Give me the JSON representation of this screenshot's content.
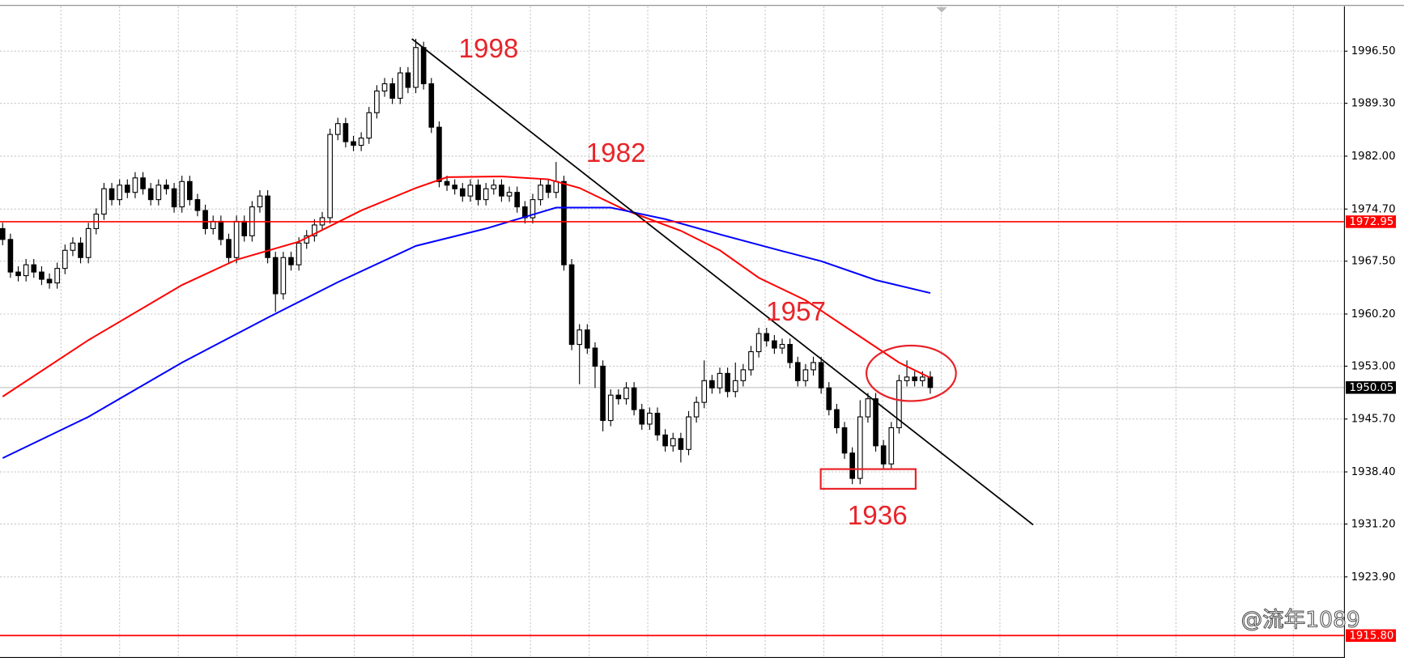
{
  "chart_data": {
    "type": "candlestick",
    "xlim": [
      -0.34,
      172.07
    ],
    "ylim": [
      1912.7,
      2002.7
    ],
    "yticks": [
      {
        "value": 1996.5,
        "label": "1996.50"
      },
      {
        "value": 1989.3,
        "label": "1989.30"
      },
      {
        "value": 1982,
        "label": "1982.00"
      },
      {
        "value": 1974.7,
        "label": "1974.70"
      },
      {
        "value": 1967.5,
        "label": "1967.50"
      },
      {
        "value": 1960.2,
        "label": "1960.20"
      },
      {
        "value": 1953,
        "label": "1953.00"
      },
      {
        "value": 1945.7,
        "label": "1945.70"
      },
      {
        "value": 1938.4,
        "label": "1938.40"
      },
      {
        "value": 1931.2,
        "label": "1931.20"
      },
      {
        "value": 1923.9,
        "label": "1923.90"
      }
    ],
    "grid": true,
    "open": [
      1972,
      1970.5,
      1966,
      1965.5,
      1967,
      1966,
      1965,
      1964.5,
      1966.5,
      1969,
      1970,
      1968,
      1972,
      1974,
      1977.5,
      1976,
      1978,
      1977,
      1979,
      1977.5,
      1976,
      1978,
      1977.5,
      1975,
      1978.5,
      1976,
      1974.5,
      1972,
      1973,
      1970.5,
      1968,
      1973,
      1971,
      1975,
      1976.5,
      1968,
      1963,
      1968,
      1967,
      1970,
      1971,
      1972.5,
      1973.5,
      1985,
      1986.5,
      1984,
      1983.5,
      1984.5,
      1988,
      1991,
      1992,
      1990,
      1993.5,
      1991.5,
      1997,
      1992,
      1986,
      1978.5,
      1978,
      1977.5,
      1976.5,
      1978,
      1976,
      1977.5,
      1978,
      1976.5,
      1977,
      1975,
      1973.5,
      1976,
      1978,
      1977,
      1978.5,
      1967,
      1956,
      1958,
      1955.5,
      1953,
      1945.5,
      1949,
      1948.5,
      1950,
      1947,
      1945,
      1946.5,
      1943.5,
      1942,
      1943,
      1941.5,
      1946,
      1948,
      1951,
      1950,
      1952,
      1949.5,
      1951,
      1952.5,
      1955,
      1957.5,
      1956.5,
      1955.5,
      1956,
      1953.5,
      1951,
      1952.5,
      1953.5,
      1950,
      1947,
      1944.5,
      1941,
      1937.5,
      1946,
      1948.5,
      1942,
      1939.5,
      1944.5,
      1951,
      1951.5,
      1951,
      1951.5
    ],
    "high": [
      1972.8,
      1971.3,
      1966.8,
      1967.8,
      1967.8,
      1966.8,
      1965.8,
      1967.3,
      1969.8,
      1970.8,
      1970.8,
      1972.8,
      1974.8,
      1978.3,
      1978.3,
      1978.8,
      1978.8,
      1979.8,
      1979.8,
      1978.3,
      1978.8,
      1978.8,
      1978.3,
      1979.3,
      1979.3,
      1976.8,
      1975.3,
      1973.8,
      1973.8,
      1971.3,
      1973.8,
      1973.8,
      1975.8,
      1977.3,
      1977.3,
      1968.8,
      1968.8,
      1968.8,
      1970.8,
      1971.8,
      1973.3,
      1974.3,
      1985.8,
      1987.3,
      1987.3,
      1984.8,
      1985.3,
      1988.8,
      1991.8,
      1992.8,
      1992.8,
      1994.3,
      1994.3,
      1998.2,
      1997.8,
      1992.8,
      1986.8,
      1979.3,
      1978.8,
      1978.3,
      1978.8,
      1978.8,
      1978.3,
      1978.8,
      1978.8,
      1977.8,
      1977.8,
      1975.8,
      1976.8,
      1978.8,
      1978.8,
      1981.2,
      1979.3,
      1967.8,
      1958.8,
      1958.8,
      1956.3,
      1953.8,
      1949.8,
      1949.8,
      1950.8,
      1950.8,
      1947.8,
      1947.3,
      1947.3,
      1944.3,
      1943.8,
      1943.8,
      1946.8,
      1948.8,
      1953.8,
      1951.8,
      1952.8,
      1952.8,
      1953.5,
      1953.3,
      1955.8,
      1958.3,
      1958.3,
      1957.3,
      1956.8,
      1956.8,
      1954.3,
      1953.3,
      1954.3,
      1954.3,
      1950.8,
      1947.8,
      1945.3,
      1941.8,
      1948.3,
      1949.3,
      1949.3,
      1942.8,
      1945.3,
      1951.8,
      1953.8,
      1952.3,
      1952.3,
      1952.3
    ],
    "low": [
      1969.7,
      1965.2,
      1964.7,
      1964.7,
      1965.2,
      1964.2,
      1963.7,
      1963.7,
      1965.7,
      1968.2,
      1967.2,
      1967.2,
      1971.2,
      1973.2,
      1975.2,
      1975.2,
      1976.2,
      1976.2,
      1976.7,
      1975.2,
      1975.2,
      1976.7,
      1974.2,
      1974.2,
      1975.2,
      1973.7,
      1971.2,
      1971.2,
      1969.7,
      1967.2,
      1967.2,
      1970.2,
      1970.2,
      1974.2,
      1967.2,
      1960.5,
      1962.2,
      1966.2,
      1966.2,
      1969.2,
      1970.2,
      1971.7,
      1972.7,
      1984.2,
      1983.2,
      1982.7,
      1982.7,
      1983.7,
      1987.2,
      1990.2,
      1989.2,
      1989.2,
      1990.7,
      1990.7,
      1991.2,
      1985.2,
      1977.7,
      1977.2,
      1976.7,
      1975.7,
      1975.7,
      1975.2,
      1975.2,
      1976.7,
      1975.7,
      1975.7,
      1974.2,
      1972.7,
      1972.7,
      1975.2,
      1976.2,
      1976.2,
      1966.2,
      1955.2,
      1950.5,
      1954.7,
      1950,
      1944,
      1944.7,
      1947.7,
      1947.7,
      1946.2,
      1944.2,
      1944.2,
      1942.7,
      1941.2,
      1941.2,
      1939.7,
      1940.7,
      1945.2,
      1947.2,
      1949.2,
      1949.2,
      1948.7,
      1948.7,
      1950.2,
      1951.7,
      1954.2,
      1955.7,
      1954.7,
      1954.7,
      1952.7,
      1950.2,
      1950.2,
      1951.7,
      1949.2,
      1946.2,
      1943.7,
      1940.2,
      1936.7,
      1936.7,
      1945.2,
      1941.2,
      1938.7,
      1938.7,
      1943.7,
      1950.2,
      1950.2,
      1950.2,
      1949.2
    ],
    "close": [
      1970.5,
      1966,
      1965.5,
      1967,
      1966,
      1965,
      1964.5,
      1966.5,
      1969,
      1970,
      1968,
      1972,
      1974,
      1977.5,
      1976,
      1978,
      1977,
      1979,
      1977.5,
      1976,
      1978,
      1977.5,
      1975,
      1978.5,
      1976,
      1974.5,
      1972,
      1973,
      1970.5,
      1968,
      1973,
      1971,
      1975,
      1976.5,
      1968,
      1963,
      1968,
      1967,
      1970,
      1971,
      1972.5,
      1973.5,
      1985,
      1986.5,
      1984,
      1983.5,
      1984.5,
      1988,
      1991,
      1992,
      1990,
      1993.5,
      1991.5,
      1997,
      1992,
      1986,
      1978.5,
      1978,
      1977.5,
      1976.5,
      1978,
      1976,
      1977.5,
      1978,
      1976.5,
      1977,
      1975,
      1973.5,
      1976,
      1978,
      1977,
      1978.5,
      1967,
      1956,
      1958,
      1955.5,
      1953,
      1945.5,
      1949,
      1948.5,
      1950,
      1947,
      1945,
      1946.5,
      1943.5,
      1942,
      1943,
      1941.5,
      1946,
      1948,
      1951,
      1950,
      1952,
      1949.5,
      1951,
      1952.5,
      1955,
      1957.5,
      1956.5,
      1955.5,
      1956,
      1953.5,
      1951,
      1952.5,
      1953.5,
      1950,
      1947,
      1944.5,
      1941,
      1937.5,
      1946,
      1948.5,
      1942,
      1939.5,
      1944.5,
      1951,
      1951.5,
      1951,
      1951.5,
      1950.05
    ],
    "series": [
      {
        "color": "#ff0000",
        "x": [
          0,
          11,
          23,
          30,
          38,
          46,
          53,
          57,
          64,
          70,
          74,
          80,
          87,
          92,
          97,
          103,
          109,
          115,
          119
        ],
        "values": [
          1948.8,
          1956.6,
          1964.2,
          1967.7,
          1970.2,
          1974.5,
          1977.6,
          1979.1,
          1979.2,
          1978.8,
          1977.6,
          1974.5,
          1971.7,
          1969,
          1965.2,
          1962.1,
          1957.8,
          1953.5,
          1951.4
        ]
      },
      {
        "color": "#0000ff",
        "x": [
          0,
          11,
          23,
          34,
          43,
          53,
          62,
          71,
          78,
          85,
          92,
          100,
          105,
          112,
          119
        ],
        "values": [
          1940.3,
          1946,
          1953.5,
          1959.7,
          1964.6,
          1969.6,
          1972,
          1974.9,
          1974.9,
          1973.3,
          1971.2,
          1968.9,
          1967.5,
          1964.9,
          1963.1
        ]
      }
    ],
    "trendline": {
      "color": "#000000",
      "x": [
        52.5,
        132.2
      ],
      "values": [
        1998.2,
        1931.1
      ]
    },
    "levels": [
      {
        "value": 1972.95,
        "color": "#ff0000"
      },
      {
        "value": 1915.8,
        "label": "1915.80",
        "color": "#ff0000"
      }
    ],
    "current_price": {
      "value": 1950.05,
      "color": "#c0c0c0"
    },
    "annotations": [
      "1998",
      "1982",
      "1957",
      "1936"
    ],
    "watermark": "@流年1089"
  }
}
